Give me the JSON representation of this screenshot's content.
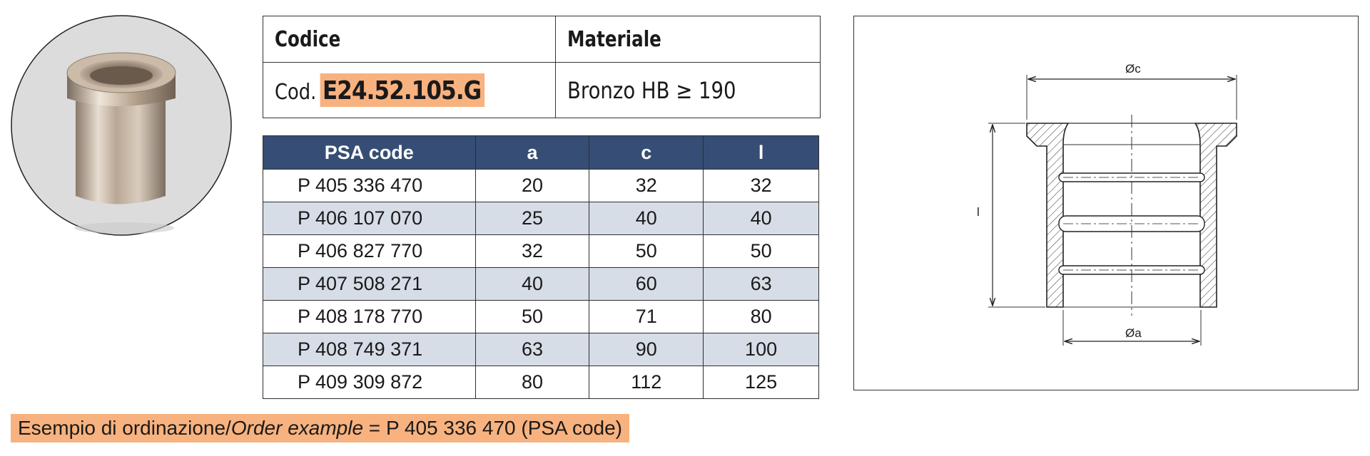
{
  "header": {
    "code_label": "Codice",
    "material_label": "Materiale",
    "code_prefix": "Cod.",
    "code_value": "E24.52.105.G",
    "material_value": "Bronzo HB ≥ 190"
  },
  "table": {
    "columns": [
      "PSA code",
      "a",
      "c",
      "l"
    ],
    "rows": [
      [
        "P 405 336 470",
        "20",
        "32",
        "32"
      ],
      [
        "P 406 107 070",
        "25",
        "40",
        "40"
      ],
      [
        "P 406 827 770",
        "32",
        "50",
        "50"
      ],
      [
        "P 407 508 271",
        "40",
        "60",
        "63"
      ],
      [
        "P 408 178 770",
        "50",
        "71",
        "80"
      ],
      [
        "P 408 749 371",
        "63",
        "90",
        "100"
      ],
      [
        "P 409 309 872",
        "80",
        "112",
        "125"
      ]
    ]
  },
  "drawing": {
    "label_c": "Øc",
    "label_a": "Øa",
    "label_l": "l"
  },
  "order_example": {
    "prefix": "Esempio di ordinazione/",
    "italic": "Order example",
    "suffix": " = P 405 336 470 (PSA code)"
  },
  "colors": {
    "header_bg": "#364e75",
    "alt_row": "#d7dde7",
    "highlight": "#f7b27f"
  }
}
